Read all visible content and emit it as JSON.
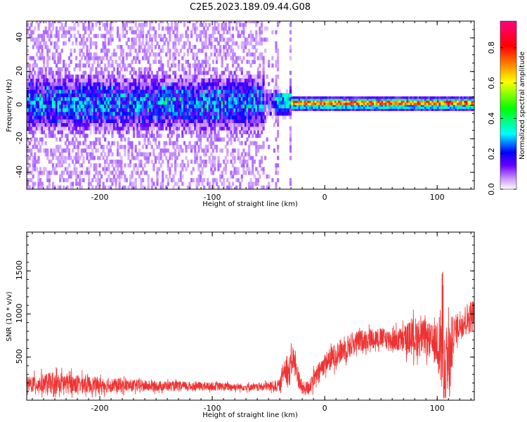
{
  "figure": {
    "title": "C2E5.2023.189.09.44.G08"
  },
  "chart_data": [
    {
      "type": "heatmap",
      "title": "",
      "xlabel": "Height of straight line (km)",
      "ylabel": "Frequency (Hz)",
      "xlim": [
        -265,
        133
      ],
      "ylim": [
        -50,
        50
      ],
      "x_ticks": [
        -200,
        -100,
        0,
        100
      ],
      "x_tick_labels": [
        "-200",
        "-100",
        "0",
        "100"
      ],
      "y_ticks": [
        -40,
        -20,
        0,
        20,
        40
      ],
      "y_tick_labels": [
        "-40",
        "-20",
        "0",
        "20",
        "40"
      ],
      "colorbar": {
        "label": "Normalized spectral amplitude",
        "range": [
          0,
          0.95
        ],
        "ticks": [
          0.0,
          0.2,
          0.4,
          0.6,
          0.8
        ],
        "tick_labels": [
          "0.0",
          "0.2",
          "0.4",
          "0.6",
          "0.8"
        ],
        "colors": [
          "#ffffff",
          "#cc99ff",
          "#6a00ff",
          "#0000ff",
          "#00ffff",
          "#00ff00",
          "#ffff00",
          "#ff0000",
          "#ff0080"
        ]
      },
      "regions": [
        {
          "x": [
            -265,
            -55
          ],
          "description_key": "broad",
          "core_halfwidth_hz": 12,
          "spread_halfwidth_hz": 50
        },
        {
          "x": [
            -55,
            -30
          ],
          "description_key": "transition",
          "core_halfwidth_hz": 6
        },
        {
          "x": [
            -30,
            133
          ],
          "description_key": "narrow",
          "core_halfwidth_hz": 2,
          "peak_amplitude": 0.85
        }
      ]
    },
    {
      "type": "line",
      "title": "",
      "xlabel": "Height of straight line (km)",
      "ylabel": "SNR (10 * v/v)",
      "xlim": [
        -265,
        133
      ],
      "ylim": [
        0,
        1950
      ],
      "x_ticks": [
        -200,
        -100,
        0,
        100
      ],
      "x_tick_labels": [
        "-200",
        "-100",
        "0",
        "100"
      ],
      "y_ticks": [
        500,
        1000,
        1500
      ],
      "y_tick_labels": [
        "500",
        "1000",
        "1500"
      ],
      "series": [
        {
          "color": "#ee3333",
          "envelope": {
            "x": [
              -265,
              -240,
              -200,
              -150,
              -100,
              -60,
              -40,
              -35,
              -32,
              -28,
              -25,
              -20,
              -15,
              -10,
              -5,
              0,
              10,
              20,
              30,
              40,
              50,
              60,
              70,
              80,
              90,
              98,
              100,
              102,
              105,
              107,
              110,
              115,
              120,
              133
            ],
            "mean": [
              180,
              200,
              175,
              165,
              160,
              150,
              170,
              420,
              300,
              500,
              330,
              130,
              140,
              230,
              330,
              430,
              530,
              620,
              680,
              720,
              720,
              700,
              700,
              740,
              720,
              640,
              690,
              650,
              720,
              280,
              380,
              800,
              880,
              1000
            ],
            "amp": [
              90,
              130,
              90,
              60,
              50,
              40,
              70,
              180,
              200,
              150,
              140,
              80,
              90,
              110,
              110,
              120,
              140,
              140,
              130,
              120,
              120,
              120,
              160,
              230,
              200,
              220,
              300,
              350,
              900,
              500,
              600,
              170,
              180,
              200
            ]
          }
        }
      ]
    }
  ]
}
